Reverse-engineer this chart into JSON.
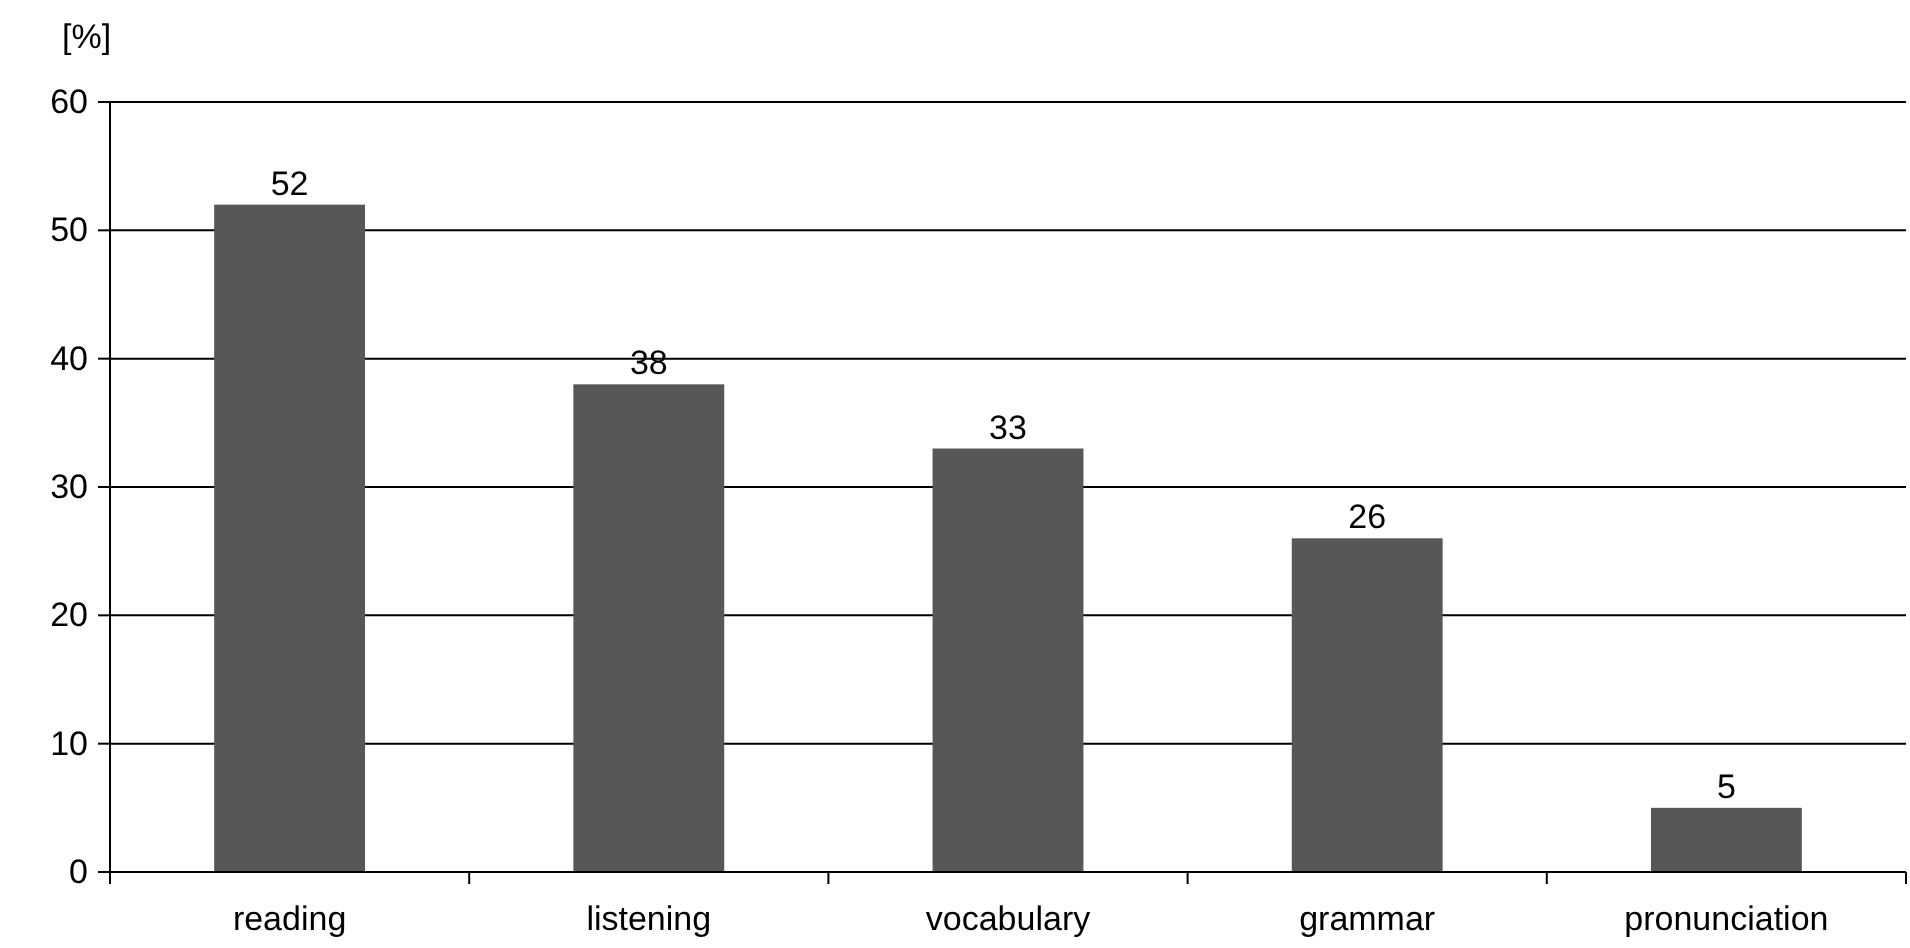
{
  "chart_data": {
    "type": "bar",
    "ylabel": "[%]",
    "categories": [
      "reading",
      "listening",
      "vocabulary",
      "grammar",
      "pronunciation"
    ],
    "values": [
      52,
      38,
      33,
      26,
      5
    ],
    "color": "#575757",
    "ylim": [
      0,
      60
    ],
    "yticks": [
      0,
      10,
      20,
      30,
      40,
      50,
      60
    ],
    "grid": "y",
    "data_labels": true
  }
}
